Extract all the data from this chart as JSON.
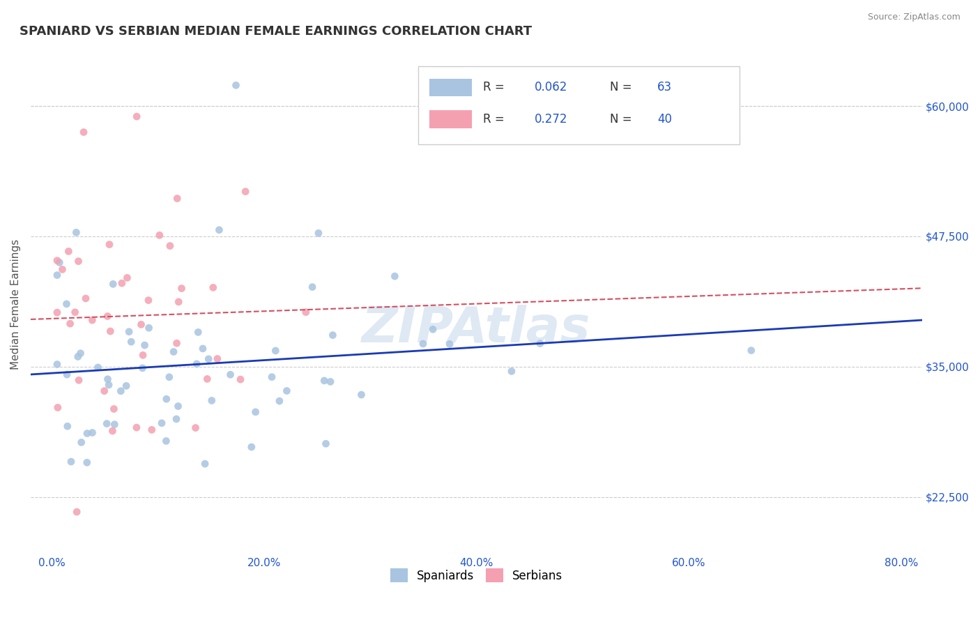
{
  "title": "SPANIARD VS SERBIAN MEDIAN FEMALE EARNINGS CORRELATION CHART",
  "source_text": "Source: ZipAtlas.com",
  "ylabel": "Median Female Earnings",
  "xlabel_ticks": [
    "0.0%",
    "20.0%",
    "40.0%",
    "60.0%",
    "80.0%"
  ],
  "xlabel_vals": [
    0.0,
    20.0,
    40.0,
    60.0,
    80.0
  ],
  "ytick_labels": [
    "$22,500",
    "$35,000",
    "$47,500",
    "$60,000"
  ],
  "ytick_vals": [
    22500,
    35000,
    47500,
    60000
  ],
  "ylim": [
    17000,
    65000
  ],
  "xlim": [
    -2,
    82
  ],
  "spaniard_R": 0.062,
  "spaniard_N": 63,
  "serbian_R": 0.272,
  "serbian_N": 40,
  "spaniard_color": "#a8c4e0",
  "serbian_color": "#f4a0b0",
  "trend_blue_color": "#1a3ab5",
  "trend_pink_color": "#d45060",
  "grid_color": "#cccccc",
  "title_color": "#333333",
  "axis_label_color": "#2255cc",
  "watermark": "ZIPAtlas",
  "legend_label_blue": "Spaniards",
  "legend_label_pink": "Serbians"
}
